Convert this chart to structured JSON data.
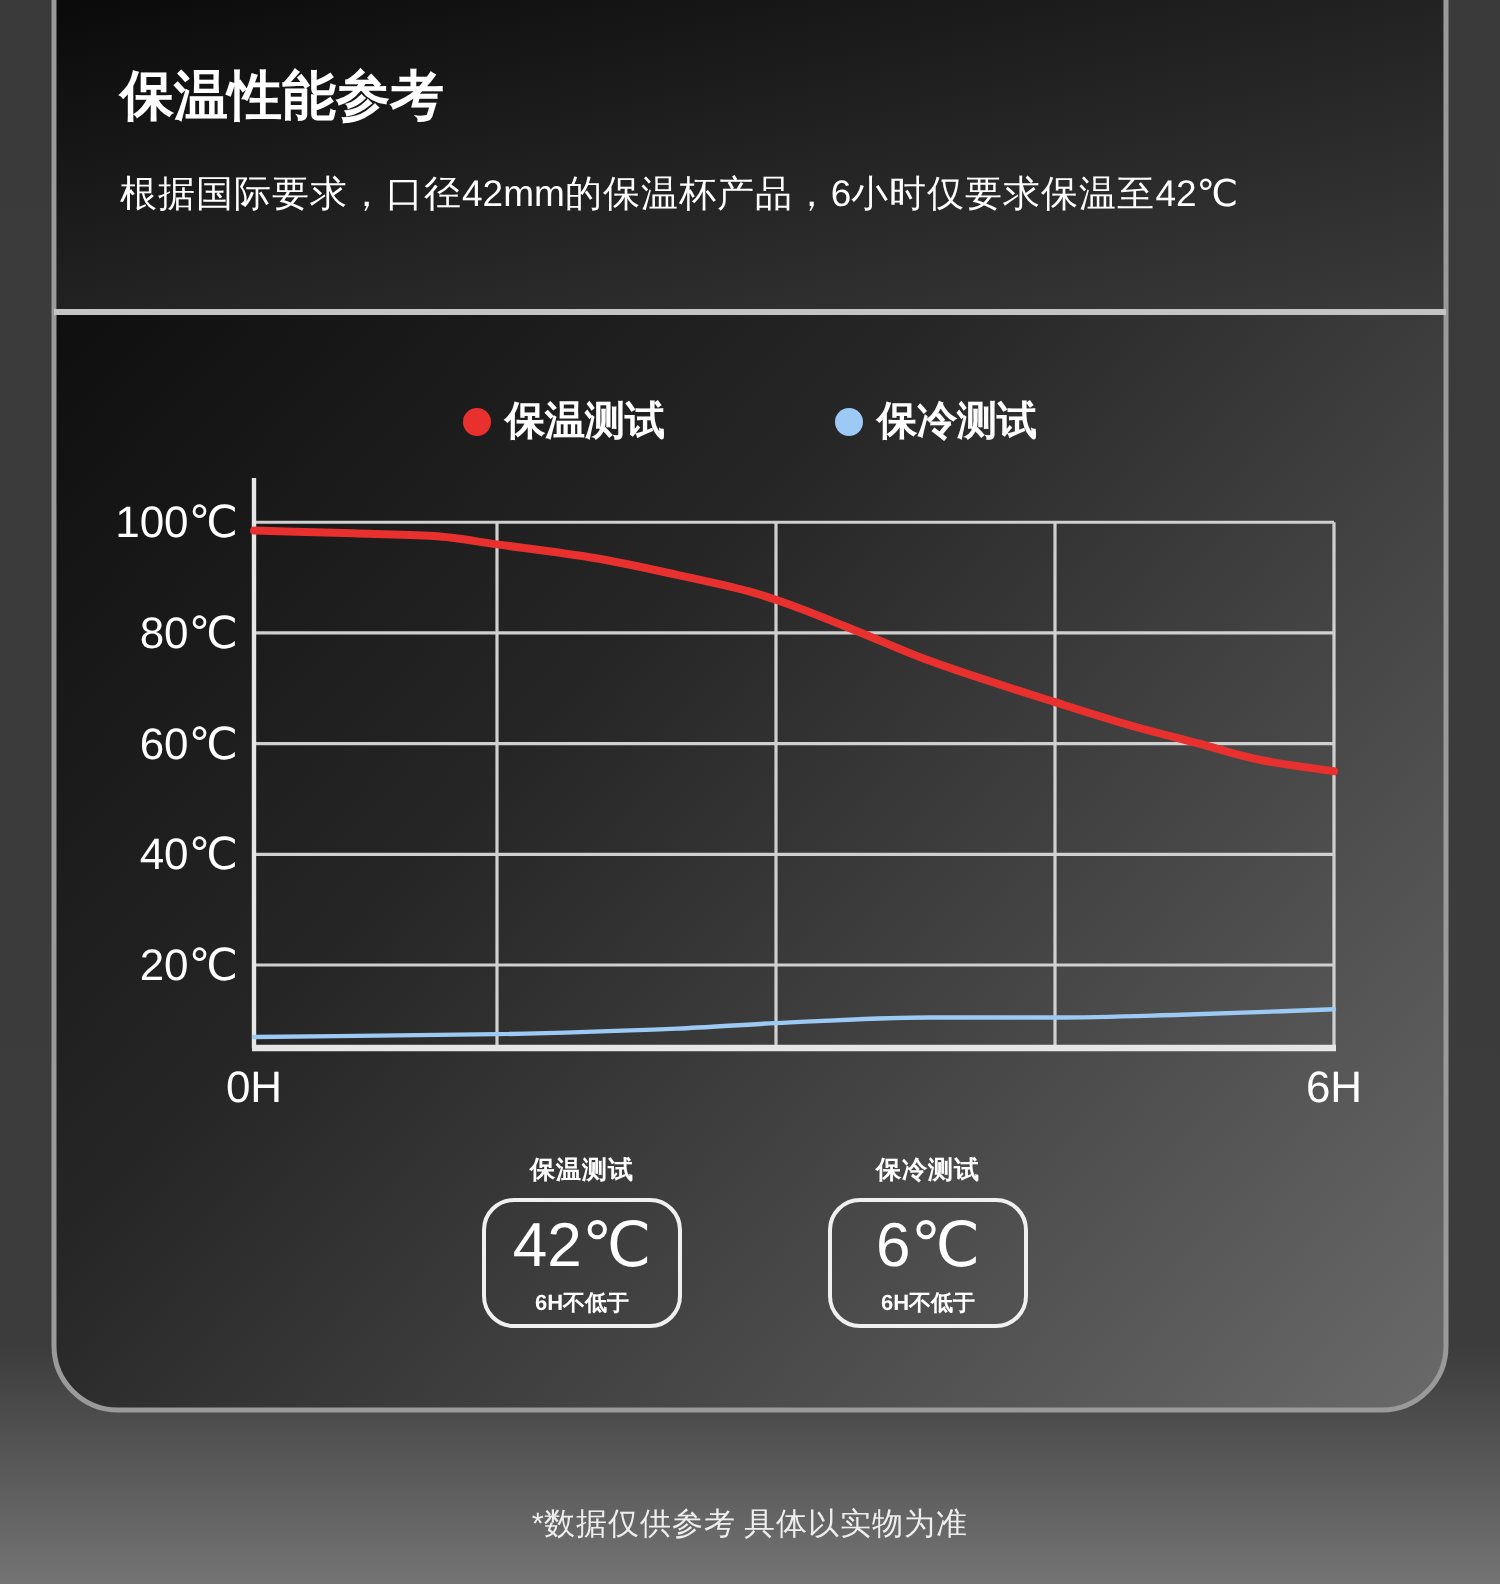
{
  "chart_data": {
    "type": "line",
    "title": "保温性能参考",
    "subtitle": "根据国际要求，口径42mm的保温杯产品，6小时仅要求保温至42℃",
    "series": [
      {
        "name": "保温测试",
        "color": "#e8302e",
        "x": [
          0,
          0.55,
          1,
          1.35,
          1.9,
          2.35,
          2.75,
          2.9,
          3.3,
          3.75,
          4.45,
          4.9,
          5.25,
          5.6,
          6
        ],
        "values": [
          98.5,
          98,
          97.5,
          96,
          93.5,
          90.5,
          87.5,
          86,
          81,
          75,
          67.5,
          63,
          60,
          57,
          55
        ]
      },
      {
        "name": "保冷测试",
        "color": "#9ccaf4",
        "x": [
          0,
          1.35,
          2.35,
          2.9,
          3.75,
          4.45,
          5.15,
          6
        ],
        "values": [
          7,
          7.5,
          8.5,
          9.5,
          10.5,
          10.5,
          11,
          12
        ]
      }
    ],
    "xlim": [
      0,
      6
    ],
    "ylim": [
      5,
      108
    ],
    "xticks": [
      {
        "value": 0,
        "label": "0H"
      },
      {
        "value": 1.35,
        "label": null
      },
      {
        "value": 2.9,
        "label": null
      },
      {
        "value": 4.45,
        "label": null
      },
      {
        "value": 6,
        "label": "6H"
      }
    ],
    "yticks": [
      {
        "value": 20,
        "label": "20℃"
      },
      {
        "value": 40,
        "label": "40℃"
      },
      {
        "value": 60,
        "label": "60℃"
      },
      {
        "value": 80,
        "label": "80℃"
      },
      {
        "value": 100,
        "label": "100℃"
      }
    ],
    "grid": true,
    "legend": "top",
    "annotations": [
      "保温测试",
      "42℃",
      "6H不低于",
      "保冷测试",
      "6℃",
      "6H不低于",
      "*数据仅供参考 具体以实物为准"
    ]
  }
}
